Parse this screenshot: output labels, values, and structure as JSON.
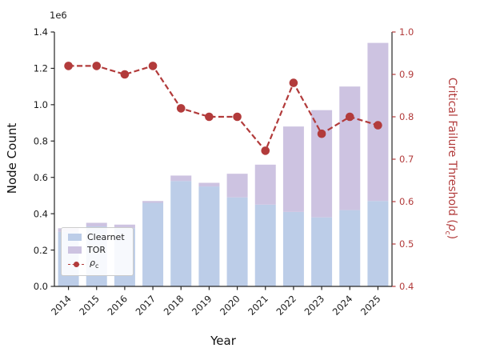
{
  "labels": {
    "offset": "1e6",
    "xlabel": "Year",
    "ylabel_left": "Node Count",
    "ylabel_right_pre": "Critical Failure Threshold (",
    "rho": "ρ",
    "rho_sub": "c",
    "ylabel_right_post": ")",
    "legend_clearnet": "Clearnet",
    "legend_tor": "TOR"
  },
  "chart_data": {
    "type": "bar",
    "title": "",
    "xlabel": "Year",
    "categories": [
      "2014",
      "2015",
      "2016",
      "2017",
      "2018",
      "2019",
      "2020",
      "2021",
      "2022",
      "2023",
      "2024",
      "2025"
    ],
    "series": [
      {
        "name": "Clearnet",
        "type": "bar",
        "stack": "nodes",
        "axis": "left",
        "color": "#bccde8",
        "values": [
          0.3,
          0.33,
          0.32,
          0.46,
          0.58,
          0.55,
          0.49,
          0.45,
          0.41,
          0.38,
          0.42,
          0.47
        ]
      },
      {
        "name": "TOR",
        "type": "bar",
        "stack": "nodes",
        "axis": "left",
        "color": "#cdc3e1",
        "values": [
          0.02,
          0.02,
          0.02,
          0.01,
          0.03,
          0.02,
          0.13,
          0.22,
          0.47,
          0.59,
          0.68,
          0.87
        ]
      },
      {
        "name": "ρc",
        "type": "line",
        "axis": "right",
        "color": "#b23b3b",
        "linestyle": "dashed",
        "marker": "circle",
        "values": [
          0.92,
          0.92,
          0.9,
          0.92,
          0.82,
          0.8,
          0.8,
          0.72,
          0.88,
          0.76,
          0.8,
          0.78
        ]
      }
    ],
    "left_axis": {
      "label": "Node Count",
      "min": 0.0,
      "max": 1.4,
      "offset_label": "1e6",
      "color": "#1a1a1a",
      "ticks": [
        "0.0",
        "0.2",
        "0.4",
        "0.6",
        "0.8",
        "1.0",
        "1.2",
        "1.4"
      ]
    },
    "right_axis": {
      "label": "Critical Failure Threshold (ρc)",
      "min": 0.4,
      "max": 1.0,
      "color": "#b23b3b",
      "ticks": [
        "0.4",
        "0.5",
        "0.6",
        "0.7",
        "0.8",
        "0.9",
        "1.0"
      ]
    },
    "legend": {
      "position": "lower left",
      "entries": [
        "Clearnet",
        "TOR",
        "ρc"
      ]
    },
    "grid": false
  }
}
